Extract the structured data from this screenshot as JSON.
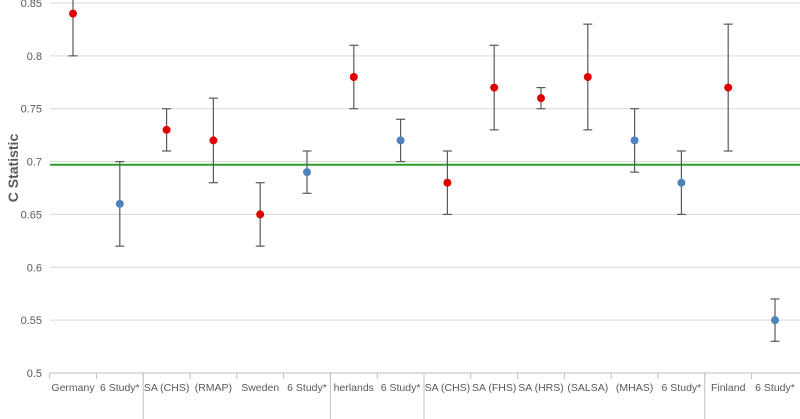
{
  "chart_data": {
    "type": "scatter",
    "ylabel": "C Statistic",
    "ylim": [
      0.5,
      0.85
    ],
    "yticks": [
      "0.5",
      "0.55",
      "0.6",
      "0.65",
      "0.7",
      "0.75",
      "0.8",
      "0.85"
    ],
    "reference_line": {
      "value": 0.697,
      "color": "#2ca02c"
    },
    "grid": true,
    "categories": [
      "Germany",
      "6 Study*",
      "SA (CHS)",
      "(RMAP)",
      "Sweden",
      "6 Study*",
      "herlands",
      "6 Study*",
      "SA (CHS)",
      "SA (FHS)",
      "SA (HRS)",
      "(SALSA)",
      "(MHAS)",
      "6 Study*",
      "Finland",
      "6 Study*"
    ],
    "colors": [
      "#e00000",
      "#4f81bd",
      "#e00000",
      "#e00000",
      "#e00000",
      "#4f81bd",
      "#e00000",
      "#4f81bd",
      "#e00000",
      "#e00000",
      "#e00000",
      "#e00000",
      "#4f81bd",
      "#4f81bd",
      "#e00000",
      "#4f81bd"
    ],
    "values": [
      0.84,
      0.66,
      0.73,
      0.72,
      0.65,
      0.69,
      0.78,
      0.72,
      0.68,
      0.77,
      0.76,
      0.78,
      0.72,
      0.68,
      0.77,
      0.55
    ],
    "lower": [
      0.8,
      0.62,
      0.71,
      0.68,
      0.62,
      0.67,
      0.75,
      0.7,
      0.65,
      0.73,
      0.75,
      0.73,
      0.69,
      0.65,
      0.71,
      0.53
    ],
    "upper": [
      0.86,
      0.7,
      0.75,
      0.76,
      0.68,
      0.71,
      0.81,
      0.74,
      0.71,
      0.81,
      0.77,
      0.83,
      0.75,
      0.71,
      0.83,
      0.57
    ],
    "group_separators_after": [
      1,
      5,
      7,
      13
    ]
  }
}
